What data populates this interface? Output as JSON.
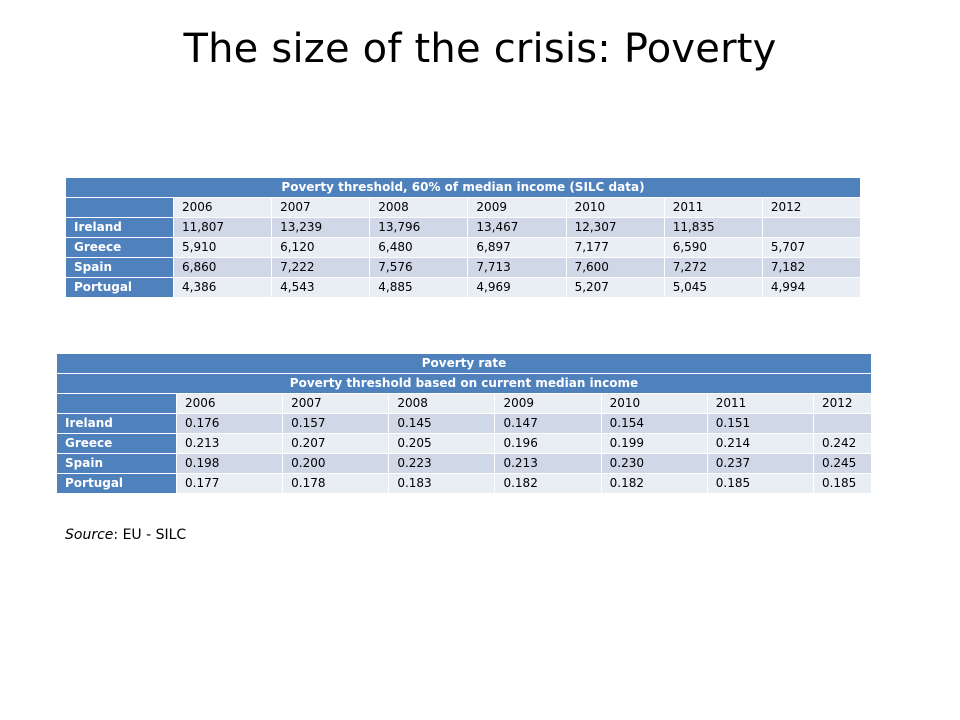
{
  "title": "The size of the crisis: Poverty",
  "table1": {
    "title": "Poverty threshold, 60% of median income (SILC data)",
    "years": [
      "2006",
      "2007",
      "2008",
      "2009",
      "2010",
      "2011",
      "2012"
    ],
    "rows": [
      {
        "country": "Ireland",
        "values": [
          "11,807",
          "13,239",
          "13,796",
          "13,467",
          "12,307",
          "11,835",
          ""
        ]
      },
      {
        "country": "Greece",
        "values": [
          "5,910",
          "6,120",
          "6,480",
          "6,897",
          "7,177",
          "6,590",
          "5,707"
        ]
      },
      {
        "country": "Spain",
        "values": [
          "6,860",
          "7,222",
          "7,576",
          "7,713",
          "7,600",
          "7,272",
          "7,182"
        ]
      },
      {
        "country": "Portugal",
        "values": [
          "4,386",
          "4,543",
          "4,885",
          "4,969",
          "5,207",
          "5,045",
          "4,994"
        ]
      }
    ]
  },
  "table2": {
    "title": "Poverty rate",
    "subtitle": "Poverty threshold based on current median income",
    "years": [
      "2006",
      "2007",
      "2008",
      "2009",
      "2010",
      "2011",
      "2012"
    ],
    "rows": [
      {
        "country": "Ireland",
        "values": [
          "0.176",
          "0.157",
          "0.145",
          "0.147",
          "0.154",
          "0.151",
          ""
        ]
      },
      {
        "country": "Greece",
        "values": [
          "0.213",
          "0.207",
          "0.205",
          "0.196",
          "0.199",
          "0.214",
          "0.242"
        ]
      },
      {
        "country": "Spain",
        "values": [
          "0.198",
          "0.200",
          "0.223",
          "0.213",
          "0.230",
          "0.237",
          "0.245"
        ]
      },
      {
        "country": "Portugal",
        "values": [
          "0.177",
          "0.178",
          "0.183",
          "0.182",
          "0.182",
          "0.185",
          "0.185"
        ]
      }
    ]
  },
  "source": {
    "label": "Source",
    "text": ": EU - SILC"
  },
  "colors": {
    "header": "#4f81bd",
    "band_light": "#e9edf4",
    "band_dark": "#d0d8e8"
  }
}
